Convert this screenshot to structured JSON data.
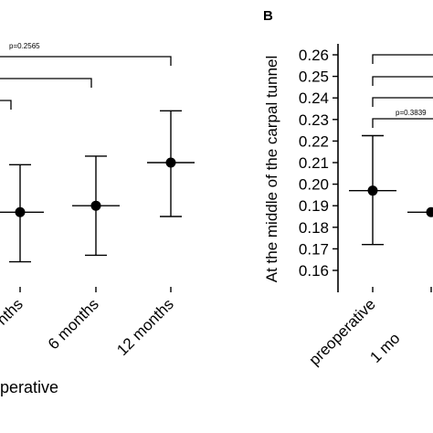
{
  "chart_data": [
    {
      "type": "errorbar",
      "categories": [
        "nths",
        "6 months",
        "12 months"
      ],
      "values": [
        0.187,
        0.19,
        0.21
      ],
      "lower": [
        0.164,
        0.167,
        0.185
      ],
      "upper": [
        0.209,
        0.213,
        0.234
      ],
      "ylim": [
        0.15,
        0.265
      ],
      "xlabel": "perative",
      "annotations": [
        "p=0.2565"
      ]
    },
    {
      "type": "errorbar",
      "panel": "B",
      "ylabel": "At the middle of the carpal tunnel",
      "categories": [
        "preoperative",
        "1 mo"
      ],
      "values": [
        0.197,
        0.187
      ],
      "lower": [
        0.172,
        null
      ],
      "upper": [
        0.2225,
        null
      ],
      "ylim": [
        0.15,
        0.265
      ],
      "yticks": [
        0.16,
        0.17,
        0.18,
        0.19,
        {
          "value": 0.2,
          "label": "0.20"
        },
        0.21,
        0.22,
        0.23,
        0.24,
        0.25,
        0.26
      ],
      "annotations": [
        "p=0.3839"
      ]
    }
  ]
}
